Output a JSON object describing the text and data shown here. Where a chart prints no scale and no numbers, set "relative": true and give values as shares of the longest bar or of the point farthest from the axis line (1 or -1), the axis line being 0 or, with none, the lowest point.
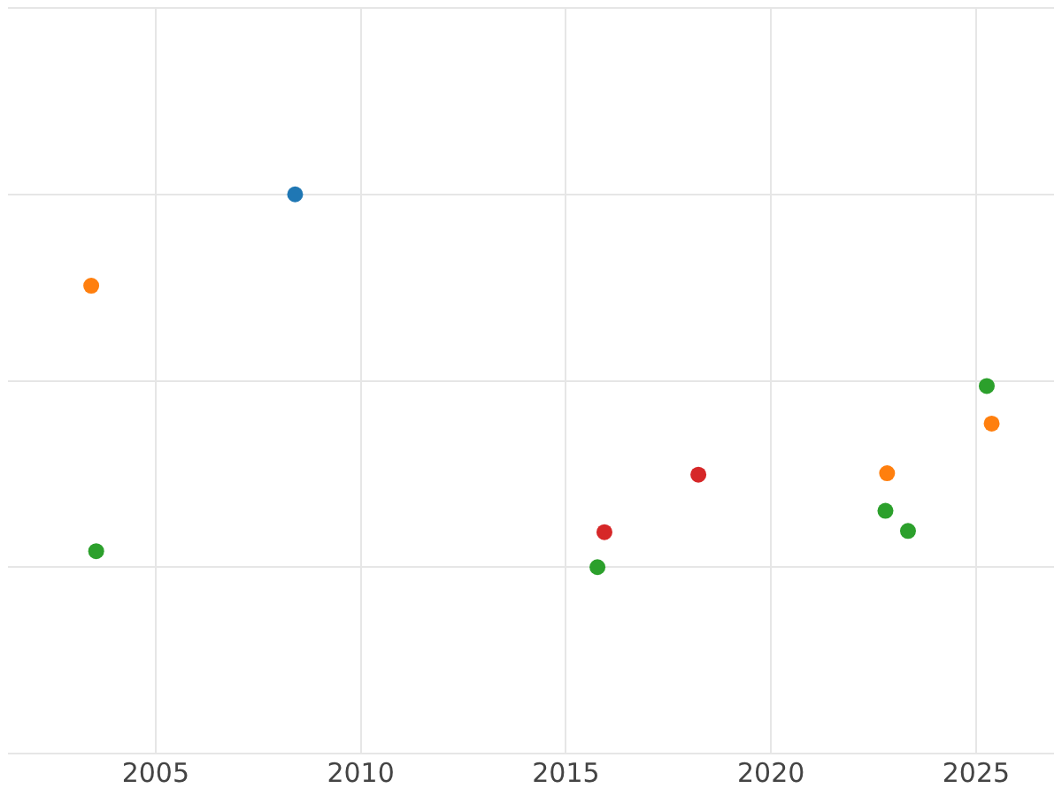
{
  "chart_data": {
    "type": "scatter",
    "relative": true,
    "grid": true,
    "legend": false,
    "marker": "circle",
    "xlim": [
      2001.4,
      2026.9
    ],
    "xticks": [
      2005,
      2010,
      2015,
      2020,
      2025
    ],
    "series": [
      {
        "color": "#1f77b4",
        "x": [
          2008.4
        ],
        "values": [
          1
        ]
      },
      {
        "color": "#ff7f0e",
        "x": [
          2003.43,
          2022.83,
          2025.38
        ],
        "values": [
          0.755,
          0.252,
          0.385
        ]
      },
      {
        "color": "#2ca02c",
        "x": [
          2003.55,
          2015.77,
          2022.79,
          2023.34,
          2025.26
        ],
        "values": [
          0.043,
          0,
          0.151,
          0.097,
          0.486
        ]
      },
      {
        "color": "#d62728",
        "x": [
          2015.94,
          2018.23
        ],
        "values": [
          0.094,
          0.248
        ]
      }
    ]
  }
}
